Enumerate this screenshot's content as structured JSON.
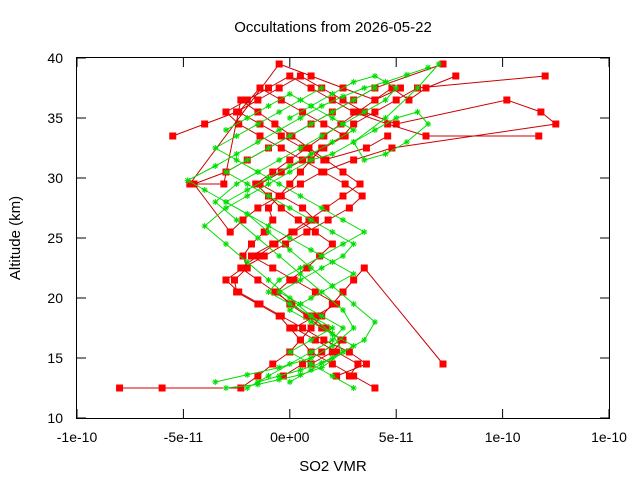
{
  "chart_data": {
    "type": "scatter",
    "title": "Occultations from 2026-05-22",
    "xlabel": "SO2 VMR",
    "ylabel": "Altitude (km)",
    "xlim": [
      -1e-10,
      1e-10
    ],
    "ylim": [
      10,
      40
    ],
    "x_ticks": [
      {
        "value": -1e-10,
        "label": "-1e-10"
      },
      {
        "value": -5e-11,
        "label": "-5e-11"
      },
      {
        "value": 0,
        "label": "0e+00"
      },
      {
        "value": 5e-11,
        "label": "5e-11"
      },
      {
        "value": 1e-10,
        "label": "1e-10"
      },
      {
        "value": 1.5e-10,
        "label": "1e-10"
      }
    ],
    "y_ticks": [
      {
        "value": 10,
        "label": "10"
      },
      {
        "value": 15,
        "label": "15"
      },
      {
        "value": 20,
        "label": "20"
      },
      {
        "value": 25,
        "label": "25"
      },
      {
        "value": 30,
        "label": "30"
      },
      {
        "value": 35,
        "label": "35"
      },
      {
        "value": 40,
        "label": "40"
      }
    ],
    "grid": false,
    "legend": "none",
    "colors": {
      "red": "#cc0000",
      "green": "#00dd00",
      "marker_red": "#ff0000"
    },
    "series": [
      {
        "color": "#cc0000",
        "marker": "square",
        "profiles": [
          {
            "x": [
              -8e-11,
              -6e-11,
              -2.3e-11,
              -1.5e-11,
              -8e-12,
              0,
              5e-12,
              1e-11,
              1.5e-11,
              2e-11,
              2.5e-11,
              3e-11,
              3.5e-11,
              7.2e-11
            ],
            "y": [
              12.5,
              12.5,
              12.5,
              13.5,
              14.5,
              15.5,
              16.5,
              17.5,
              18.5,
              19.5,
              20.5,
              21.5,
              22.5,
              14.5
            ]
          },
          {
            "x": [
              4e-11,
              3e-11,
              2e-11,
              1e-11,
              5e-12,
              0,
              -5e-12,
              -1.5e-11,
              -2.5e-11,
              -2.6e-11,
              -2e-11,
              -2.2e-11,
              -1.8e-11,
              -1.2e-11,
              -8e-12,
              -1e-11,
              -5e-12,
              0,
              5e-12,
              1e-11,
              1.5e-11,
              2.5e-11,
              3e-11,
              4e-11,
              5e-11,
              6e-11,
              1.2e-10
            ],
            "y": [
              12.5,
              13.5,
              14.5,
              15.5,
              16.5,
              17.5,
              18.5,
              19.5,
              20.5,
              21.5,
              22.5,
              23.5,
              24.5,
              25.5,
              26.5,
              27.5,
              28.5,
              29.5,
              30.5,
              31.5,
              32.5,
              33.5,
              34.5,
              35.5,
              36.5,
              37.5,
              38.5
            ]
          },
          {
            "x": [
              -5.5e-11,
              -4e-11,
              -2.5e-11,
              -1.5e-11,
              -5e-12,
              5e-12,
              1.5e-11,
              2.5e-11,
              3.5e-11,
              5e-11,
              1.02e-10,
              1.18e-10,
              1.25e-10,
              4.8e-11,
              3e-11,
              1.5e-11,
              5e-12,
              -5e-12,
              -1.5e-11,
              -2.2e-11,
              -2.8e-11,
              -4.5e-11,
              -3e-11,
              -2e-11,
              -1e-11,
              0,
              1e-11,
              2e-11,
              3e-11,
              4e-11,
              7.2e-11
            ],
            "y": [
              33.5,
              34.5,
              35.5,
              36.5,
              37.5,
              38.5,
              37.5,
              36.5,
              35.5,
              34.5,
              36.5,
              35.5,
              34.5,
              32.5,
              31.5,
              30.5,
              29.5,
              28.5,
              27.5,
              26.5,
              25.5,
              29.5,
              30.5,
              31.5,
              32.5,
              33.5,
              34.5,
              35.5,
              36.5,
              37.5,
              39.5
            ]
          },
          {
            "x": [
              2.2e-11,
              3.6e-11,
              2.8e-11,
              1.6e-11,
              6e-12,
              -4e-12,
              -1.4e-11,
              -2.4e-11,
              -3e-11,
              -2.2e-11,
              -1.2e-11,
              -2e-12,
              8e-12,
              1.8e-11,
              2.8e-11,
              3.4e-11,
              2.6e-11,
              1.6e-11,
              6e-12,
              -4e-12,
              -1.4e-11,
              -2.4e-11,
              -3e-11,
              -2e-11,
              -1e-11,
              0,
              1e-11,
              2e-11,
              3e-11,
              4.6e-11,
              6.4e-11,
              1.17e-10
            ],
            "y": [
              13.5,
              14.5,
              15.5,
              16.5,
              17.5,
              18.5,
              19.5,
              20.5,
              21.5,
              22.5,
              23.5,
              24.5,
              25.5,
              26.5,
              27.5,
              28.5,
              29.5,
              30.5,
              31.5,
              32.5,
              33.5,
              34.5,
              35.5,
              36.5,
              37.5,
              38.5,
              37.5,
              36.5,
              35.5,
              34.5,
              33.5,
              33.5
            ]
          },
          {
            "x": [
              1e-11,
              2e-11,
              2.5e-11,
              1.5e-11,
              8e-12,
              0,
              -6e-12,
              0,
              8e-12,
              1.4e-11,
              2e-11,
              1.2e-11,
              4e-12,
              -4e-12,
              -1e-11,
              -1.6e-11,
              -8e-12,
              0,
              8e-12,
              1.6e-11,
              2.4e-11,
              3.2e-11,
              4e-11,
              4.8e-11,
              5.6e-11,
              6.4e-11,
              7.8e-11
            ],
            "y": [
              14.5,
              15.5,
              16.5,
              17.5,
              18.5,
              19.5,
              20.5,
              21.5,
              22.5,
              23.5,
              24.5,
              25.5,
              26.5,
              27.5,
              28.5,
              29.5,
              30.5,
              31.5,
              32.5,
              33.5,
              34.5,
              35.5,
              36.5,
              37.5,
              36.5,
              37.5,
              38.5
            ]
          },
          {
            "x": [
              -3e-12,
              6e-12,
              1.5e-11,
              2.4e-11,
              1.7e-11,
              9e-12,
              1e-12,
              -7e-12,
              -1.5e-11,
              -2.3e-11,
              -1.5e-11,
              -7e-12,
              1e-12,
              9e-12,
              1.7e-11,
              2.5e-11,
              3.3e-11,
              2.5e-11,
              1.7e-11,
              9e-12,
              1e-12,
              -7e-12,
              -1.5e-11,
              -2.3e-11,
              -3.1e-11,
              -4.7e-11,
              -5e-12,
              1e-11,
              2.5e-11,
              4e-11,
              5.2e-11
            ],
            "y": [
              13.5,
              14.5,
              15.5,
              16.5,
              17.5,
              18.5,
              19.5,
              20.5,
              21.5,
              22.5,
              23.5,
              24.5,
              25.5,
              26.5,
              27.5,
              28.5,
              29.5,
              30.5,
              31.5,
              32.5,
              33.5,
              34.5,
              35.5,
              36.5,
              29.5,
              29.5,
              39.5,
              38.5,
              37.5,
              36.5,
              37.5
            ]
          },
          {
            "x": [
              2.8e-11,
              3.2e-11,
              2.2e-11,
              1.2e-11,
              2e-12,
              1.2e-11,
              2.2e-11,
              1.2e-11,
              2e-12,
              -8e-12,
              -1.8e-11,
              -8e-12,
              2e-12,
              1.2e-11,
              6e-12,
              -4e-12,
              -1.4e-11,
              -4e-12,
              6e-12,
              1.6e-11,
              2.6e-11,
              1.6e-11,
              6e-12,
              -4e-12,
              -1.4e-11,
              -2.4e-11,
              -1.4e-11,
              -4e-12,
              6e-12,
              1.6e-11,
              3.6e-11,
              4.6e-11
            ],
            "y": [
              13.5,
              14.5,
              15.5,
              16.5,
              17.5,
              18.5,
              19.5,
              20.5,
              21.5,
              22.5,
              23.5,
              24.5,
              25.5,
              26.5,
              27.5,
              28.5,
              29.5,
              30.5,
              31.5,
              32.5,
              33.5,
              34.5,
              35.5,
              36.5,
              37.5,
              35.5,
              34.5,
              33.5,
              32.5,
              31.5,
              32.5,
              33.5
            ]
          }
        ]
      },
      {
        "color": "#00dd00",
        "marker": "cross",
        "profiles": [
          {
            "x": [
              -3e-11,
              -1.5e-11,
              -5e-12,
              5e-12,
              1.5e-11,
              2.5e-11,
              2e-11,
              1e-11,
              0,
              -1e-11,
              -2e-11,
              -3e-11,
              -4e-11,
              -3e-11,
              -2e-11,
              -1e-11,
              0,
              1e-11,
              2e-11,
              3e-11,
              4e-11,
              5e-11,
              6e-11,
              6.5e-11,
              5.5e-11,
              4.5e-11,
              3.5e-11,
              3e-11,
              4.5e-11,
              6e-11,
              7e-11
            ],
            "y": [
              12.5,
              12.8,
              13.2,
              13.6,
              14.2,
              15.5,
              17,
              18.5,
              20,
              21.5,
              23,
              24.5,
              26,
              27.5,
              28.5,
              29.5,
              30.5,
              31.5,
              32,
              33,
              34,
              35,
              35.5,
              34.5,
              33,
              32,
              31.5,
              33,
              35,
              37.5,
              39.5
            ]
          },
          {
            "x": [
              -1.5e-11,
              -5e-12,
              5e-12,
              1.5e-11,
              2.5e-11,
              3.5e-11,
              4e-11,
              3e-11,
              2e-11,
              1e-11,
              0,
              -1e-11,
              -2e-11,
              -3e-11,
              -4e-11,
              -4.8e-11,
              -3.5e-11,
              -2.5e-11,
              -1.5e-11,
              -5e-12,
              5e-12,
              1.5e-11,
              2.5e-11,
              3.5e-11,
              4.5e-11,
              5.5e-11,
              6.5e-11
            ],
            "y": [
              13,
              13.5,
              14,
              14.6,
              15.5,
              16.5,
              18,
              19.5,
              21,
              22.5,
              24,
              25.5,
              27,
              28,
              29,
              29.8,
              31,
              32,
              33,
              34,
              35,
              36,
              36.8,
              37.5,
              38,
              38.6,
              39.2
            ]
          },
          {
            "x": [
              -3.5e-11,
              -2e-11,
              -5e-12,
              1e-11,
              2e-11,
              3e-11,
              2.5e-11,
              1.5e-11,
              5e-12,
              -5e-12,
              -1.5e-11,
              -2.5e-11,
              -3.5e-11,
              -2.5e-11,
              -1.5e-11,
              -5e-12,
              5e-12,
              1.5e-11,
              2.5e-11,
              3.5e-11,
              4.5e-11,
              5e-11,
              4e-11,
              3e-11,
              2e-11,
              1e-11,
              0
            ],
            "y": [
              13,
              13.6,
              14.2,
              15,
              16,
              17.5,
              19,
              20.5,
              22,
              23.5,
              25,
              26.5,
              28,
              29.5,
              30.5,
              31.5,
              32.5,
              33.5,
              34.5,
              35.5,
              36.5,
              37.5,
              38.5,
              38,
              37,
              36,
              35
            ]
          },
          {
            "x": [
              0,
              1e-11,
              2e-11,
              3e-11,
              2e-11,
              1e-11,
              0,
              1e-11,
              2e-11,
              3e-11,
              2e-11,
              1e-11,
              0,
              -1e-11,
              -2e-11,
              -3e-11,
              -2e-11,
              -1e-11,
              0,
              1e-11,
              2e-11,
              3e-11,
              2e-11,
              1e-11,
              0,
              -1e-11,
              -2e-11,
              -3e-11
            ],
            "y": [
              13,
              14,
              15,
              16,
              17,
              18,
              19,
              20,
              21,
              22,
              23,
              24,
              25,
              26,
              27,
              28,
              29,
              30,
              31,
              32,
              33,
              34,
              35,
              36,
              37,
              36,
              35,
              34
            ]
          },
          {
            "x": [
              -2e-11,
              -1e-11,
              0,
              1e-11,
              2e-11,
              2.5e-11,
              1.5e-11,
              5e-12,
              -5e-12,
              5e-12,
              1.5e-11,
              2.5e-11,
              3e-11,
              2e-11,
              1e-11,
              0,
              -1e-11,
              -2e-11,
              -3e-11,
              -2e-11,
              -1e-11,
              0,
              1e-11,
              2e-11,
              3e-11,
              4e-11
            ],
            "y": [
              12.5,
              13.5,
              14.5,
              15.5,
              16.5,
              17.5,
              18.5,
              19.5,
              20.5,
              21.5,
              22.5,
              23.5,
              24.5,
              25.5,
              26.5,
              27.5,
              28.5,
              29.5,
              30.5,
              31.5,
              32.5,
              33.5,
              34.5,
              35.5,
              36.5,
              37.5
            ]
          },
          {
            "x": [
              3e-11,
              2e-11,
              1e-11,
              0,
              1e-11,
              2e-11,
              1e-11,
              0,
              -1e-11,
              -5e-12,
              5e-12,
              1.5e-11,
              2.5e-11,
              3.5e-11,
              2.5e-11,
              1.5e-11,
              5e-12,
              -5e-12,
              -1.5e-11,
              -2.5e-11,
              -3.5e-11,
              -2.5e-11,
              -1.5e-11,
              -5e-12,
              5e-12,
              1.5e-11
            ],
            "y": [
              12.5,
              13.5,
              14.5,
              15.5,
              16.5,
              17.5,
              18.5,
              19.5,
              20.5,
              21.5,
              22.5,
              23.5,
              24.5,
              25.5,
              26.5,
              27.5,
              28.5,
              29.5,
              30.5,
              31.5,
              32.5,
              33.5,
              34.5,
              35.5,
              36.5,
              37.5
            ]
          }
        ]
      }
    ]
  }
}
